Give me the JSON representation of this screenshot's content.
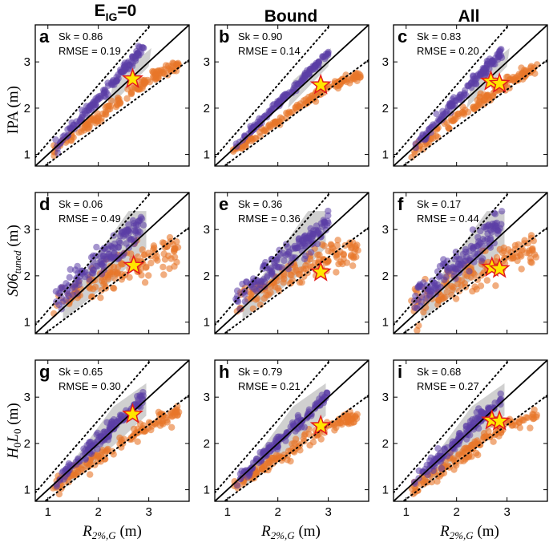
{
  "figure": {
    "column_titles": [
      {
        "main": "E",
        "sub": "IG",
        "tail": "=0"
      },
      {
        "main": "Bound",
        "sub": "",
        "tail": ""
      },
      {
        "main": "All",
        "sub": "",
        "tail": ""
      }
    ],
    "row_ylabels": [
      {
        "base": "IPA",
        "sub": "",
        "unit": " (m)"
      },
      {
        "base": "S06",
        "sub": "tuned",
        "unit": " (m)"
      },
      {
        "base": "H",
        "sub": "0",
        "base2": "L",
        "sub2": "0",
        "unit": " (m)"
      }
    ],
    "xlabel": {
      "base": "R",
      "sub": "2%,G",
      "unit": " (m)"
    },
    "ticks": {
      "x": [
        "1",
        "2",
        "3"
      ],
      "y": [
        "1",
        "2",
        "3"
      ]
    },
    "colors": {
      "purple": "#5b3ea6",
      "orange": "#e8772a",
      "star_fill": "#ffe600",
      "star_edge": "#e31a1c",
      "shade": "#c8c8c8"
    }
  },
  "chart_data": [
    {
      "type": "scatter",
      "panel": "a",
      "stats": {
        "sk": "Sk = 0.86",
        "rmse": "RMSE = 0.19"
      },
      "xlim": [
        0.75,
        3.8
      ],
      "ylim": [
        0.75,
        3.8
      ],
      "stars": [
        [
          2.68,
          2.63
        ]
      ],
      "spread": 0.1,
      "scale": 1.05,
      "pattern": "tight",
      "xlabel": "",
      "ylabel": "IPA (m)"
    },
    {
      "type": "scatter",
      "panel": "b",
      "stats": {
        "sk": "Sk = 0.90",
        "rmse": "RMSE = 0.14"
      },
      "xlim": [
        0.75,
        3.8
      ],
      "ylim": [
        0.75,
        3.8
      ],
      "stars": [
        [
          2.85,
          2.5
        ]
      ],
      "spread": 0.07,
      "scale": 0.92,
      "pattern": "tight",
      "xlabel": "",
      "ylabel": ""
    },
    {
      "type": "scatter",
      "panel": "c",
      "stats": {
        "sk": "Sk = 0.83",
        "rmse": "RMSE = 0.20"
      },
      "xlim": [
        0.75,
        3.8
      ],
      "ylim": [
        0.75,
        3.8
      ],
      "stars": [
        [
          2.68,
          2.58
        ],
        [
          2.85,
          2.53
        ]
      ],
      "spread": 0.11,
      "scale": 1.0,
      "pattern": "tight",
      "xlabel": "",
      "ylabel": ""
    },
    {
      "type": "scatter",
      "panel": "d",
      "stats": {
        "sk": "Sk = 0.06",
        "rmse": "RMSE = 0.49"
      },
      "xlim": [
        0.75,
        3.8
      ],
      "ylim": [
        0.75,
        3.8
      ],
      "stars": [
        [
          2.7,
          2.22
        ]
      ],
      "spread": 0.32,
      "scale": 0.72,
      "pattern": "wide",
      "xlabel": "",
      "ylabel": "S06tuned (m)"
    },
    {
      "type": "scatter",
      "panel": "e",
      "stats": {
        "sk": "Sk = 0.36",
        "rmse": "RMSE = 0.36"
      },
      "xlim": [
        0.75,
        3.8
      ],
      "ylim": [
        0.75,
        3.8
      ],
      "stars": [
        [
          2.85,
          2.08
        ]
      ],
      "spread": 0.24,
      "scale": 0.7,
      "pattern": "wide",
      "xlabel": "",
      "ylabel": ""
    },
    {
      "type": "scatter",
      "panel": "f",
      "stats": {
        "sk": "Sk = 0.17",
        "rmse": "RMSE = 0.44"
      },
      "xlim": [
        0.75,
        3.8
      ],
      "ylim": [
        0.75,
        3.8
      ],
      "stars": [
        [
          2.7,
          2.18
        ],
        [
          2.85,
          2.15
        ]
      ],
      "spread": 0.3,
      "scale": 0.72,
      "pattern": "wide",
      "xlabel": "",
      "ylabel": ""
    },
    {
      "type": "scatter",
      "panel": "g",
      "stats": {
        "sk": "Sk = 0.65",
        "rmse": "RMSE = 0.30"
      },
      "xlim": [
        0.75,
        3.8
      ],
      "ylim": [
        0.75,
        3.8
      ],
      "stars": [
        [
          2.68,
          2.63
        ]
      ],
      "spread": 0.16,
      "scale": 0.88,
      "pattern": "medium",
      "xlabel": "R2%,G (m)",
      "ylabel": "H0L0 (m)"
    },
    {
      "type": "scatter",
      "panel": "h",
      "stats": {
        "sk": "Sk = 0.79",
        "rmse": "RMSE = 0.21"
      },
      "xlim": [
        0.75,
        3.8
      ],
      "ylim": [
        0.75,
        3.8
      ],
      "stars": [
        [
          2.85,
          2.38
        ]
      ],
      "spread": 0.12,
      "scale": 0.85,
      "pattern": "medium",
      "xlabel": "R2%,G (m)",
      "ylabel": ""
    },
    {
      "type": "scatter",
      "panel": "i",
      "stats": {
        "sk": "Sk = 0.68",
        "rmse": "RMSE = 0.27"
      },
      "xlim": [
        0.75,
        3.8
      ],
      "ylim": [
        0.75,
        3.8
      ],
      "stars": [
        [
          2.7,
          2.5
        ],
        [
          2.85,
          2.48
        ]
      ],
      "spread": 0.15,
      "scale": 0.88,
      "pattern": "medium",
      "xlabel": "R2%,G (m)",
      "ylabel": ""
    }
  ]
}
